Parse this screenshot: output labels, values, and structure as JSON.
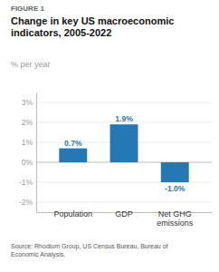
{
  "chart_data": {
    "type": "bar",
    "figure_label": "FIGURE 1",
    "title": "Change in key US macroeconomic\nindicators, 2005-2022",
    "subtitle": "% per year",
    "source": "Source: Rhodium Group, US Census Bureau, Bureau of\nEconomic Analysis.",
    "categories": [
      "Population",
      "GDP",
      "Net GHG\nemissions"
    ],
    "values": [
      0.7,
      1.9,
      -1.0
    ],
    "value_labels": [
      "0.7%",
      "1.9%",
      "-1.0%"
    ],
    "data_labels": true,
    "color": "#2479b5",
    "ylim": [
      -2.5,
      3.5
    ],
    "yticks": [
      {
        "value": -2,
        "label": "-2%"
      },
      {
        "value": -1,
        "label": "-1%"
      },
      {
        "value": 0,
        "label": "0%"
      },
      {
        "value": 1,
        "label": "1%"
      },
      {
        "value": 2,
        "label": "2%"
      },
      {
        "value": 3,
        "label": "3%"
      }
    ],
    "grid": true
  }
}
